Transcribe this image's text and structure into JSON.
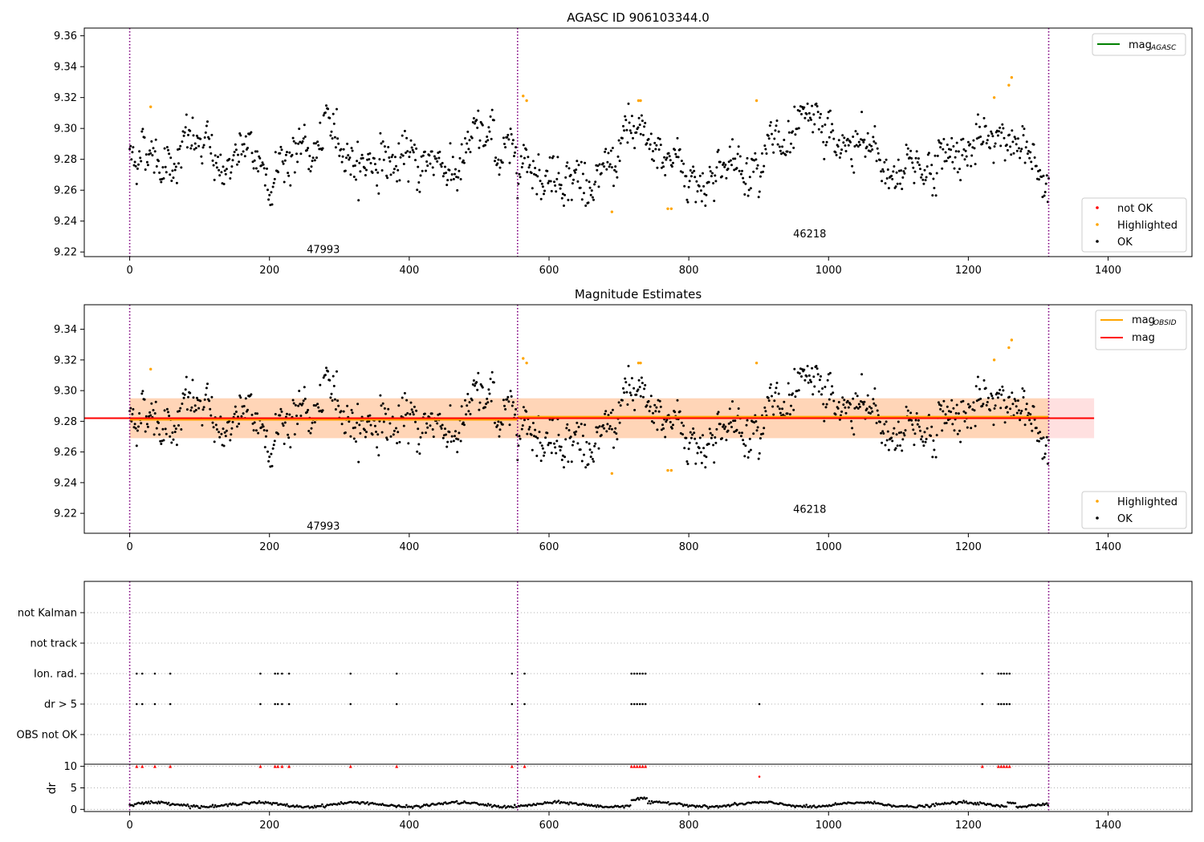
{
  "chart_data": [
    {
      "type": "scatter",
      "title": "AGASC ID 906103344.0",
      "xlim": [
        -65,
        1520
      ],
      "ylim": [
        9.217,
        9.365
      ],
      "xticks": [
        "0",
        "200",
        "400",
        "600",
        "800",
        "1000",
        "1200",
        "1400"
      ],
      "yticks": [
        "9.22",
        "9.24",
        "9.26",
        "9.28",
        "9.30",
        "9.32",
        "9.34",
        "9.36"
      ],
      "obs_boundaries": [
        0,
        555,
        1315
      ],
      "obsid_labels": [
        {
          "text": "47993",
          "x": 277,
          "y": 9.222
        },
        {
          "text": "46218",
          "x": 973,
          "y": 9.232
        }
      ],
      "legend_upper": [
        {
          "label": "mag",
          "sub": "AGASC",
          "color": "#008000"
        }
      ],
      "legend_lower": [
        {
          "label": "not OK",
          "color": "#ff0000"
        },
        {
          "label": "Highlighted",
          "color": "#ffa500"
        },
        {
          "label": "OK",
          "color": "#000000"
        }
      ],
      "highlighted_points": [
        [
          30,
          9.314
        ],
        [
          563,
          9.321
        ],
        [
          568,
          9.318
        ],
        [
          690,
          9.246
        ],
        [
          728,
          9.318
        ],
        [
          731,
          9.318
        ],
        [
          770,
          9.248
        ],
        [
          775,
          9.248
        ],
        [
          897,
          9.318
        ],
        [
          1237,
          9.32
        ],
        [
          1258,
          9.328
        ],
        [
          1262,
          9.333
        ]
      ]
    },
    {
      "type": "scatter",
      "title": "Magnitude Estimates",
      "xlim": [
        -65,
        1520
      ],
      "ylim": [
        9.207,
        9.356
      ],
      "xticks": [
        "0",
        "200",
        "400",
        "600",
        "800",
        "1000",
        "1200",
        "1400"
      ],
      "yticks": [
        "9.22",
        "9.24",
        "9.26",
        "9.28",
        "9.30",
        "9.32",
        "9.34"
      ],
      "obs_boundaries": [
        0,
        555,
        1315
      ],
      "obsid_labels": [
        {
          "text": "47993",
          "x": 277,
          "y": 9.212
        },
        {
          "text": "46218",
          "x": 973,
          "y": 9.223
        }
      ],
      "mag": 9.282,
      "mag_band": [
        9.269,
        9.295
      ],
      "mag_band_xrange": [
        0,
        1380
      ],
      "mag_obsid": [
        {
          "x": [
            0,
            555
          ],
          "y": 9.281
        },
        {
          "x": [
            555,
            1315
          ],
          "y": 9.283
        }
      ],
      "legend_upper": [
        {
          "label": "mag",
          "sub": "OBSID",
          "color": "#ffa500"
        },
        {
          "label": "mag",
          "sub": "",
          "color": "#ff0000"
        }
      ],
      "legend_lower": [
        {
          "label": "Highlighted",
          "color": "#ffa500"
        },
        {
          "label": "OK",
          "color": "#000000"
        }
      ],
      "highlighted_points": [
        [
          30,
          9.314
        ],
        [
          563,
          9.321
        ],
        [
          568,
          9.318
        ],
        [
          690,
          9.246
        ],
        [
          728,
          9.318
        ],
        [
          731,
          9.318
        ],
        [
          770,
          9.248
        ],
        [
          775,
          9.248
        ],
        [
          897,
          9.318
        ],
        [
          1237,
          9.32
        ],
        [
          1258,
          9.328
        ],
        [
          1262,
          9.333
        ]
      ]
    },
    {
      "type": "scatter",
      "title": "",
      "xlim": [
        -65,
        1520
      ],
      "xticks": [
        "0",
        "200",
        "400",
        "600",
        "800",
        "1000",
        "1200",
        "1400"
      ],
      "obs_boundaries": [
        0,
        555,
        1315
      ],
      "flag_rows": [
        "not Kalman",
        "not track",
        "Ion. rad.",
        "dr > 5",
        "OBS not OK"
      ],
      "flag_points": {
        "Ion. rad.": [
          10,
          18,
          36,
          58,
          187,
          208,
          212,
          218,
          228,
          316,
          382,
          547,
          565,
          718,
          722,
          726,
          730,
          734,
          738,
          1220,
          1243,
          1247,
          1251,
          1255,
          1259
        ],
        "dr > 5": [
          10,
          18,
          36,
          58,
          187,
          208,
          212,
          218,
          228,
          316,
          382,
          547,
          565,
          718,
          722,
          726,
          730,
          734,
          738,
          901,
          1220,
          1243,
          1247,
          1251,
          1255,
          1259
        ]
      },
      "dr_ylabel": "dr",
      "dr_yticks": [
        "0",
        "5",
        "10"
      ],
      "dr_ylim": [
        -0.5,
        10.5
      ],
      "dr_clipped_points": [
        10,
        18,
        36,
        58,
        187,
        208,
        212,
        218,
        228,
        316,
        382,
        547,
        565,
        718,
        722,
        726,
        730,
        734,
        738,
        1220,
        1243,
        1247,
        1251,
        1255,
        1259
      ],
      "dr_extra_points": [
        [
          901,
          7.6
        ]
      ]
    }
  ]
}
